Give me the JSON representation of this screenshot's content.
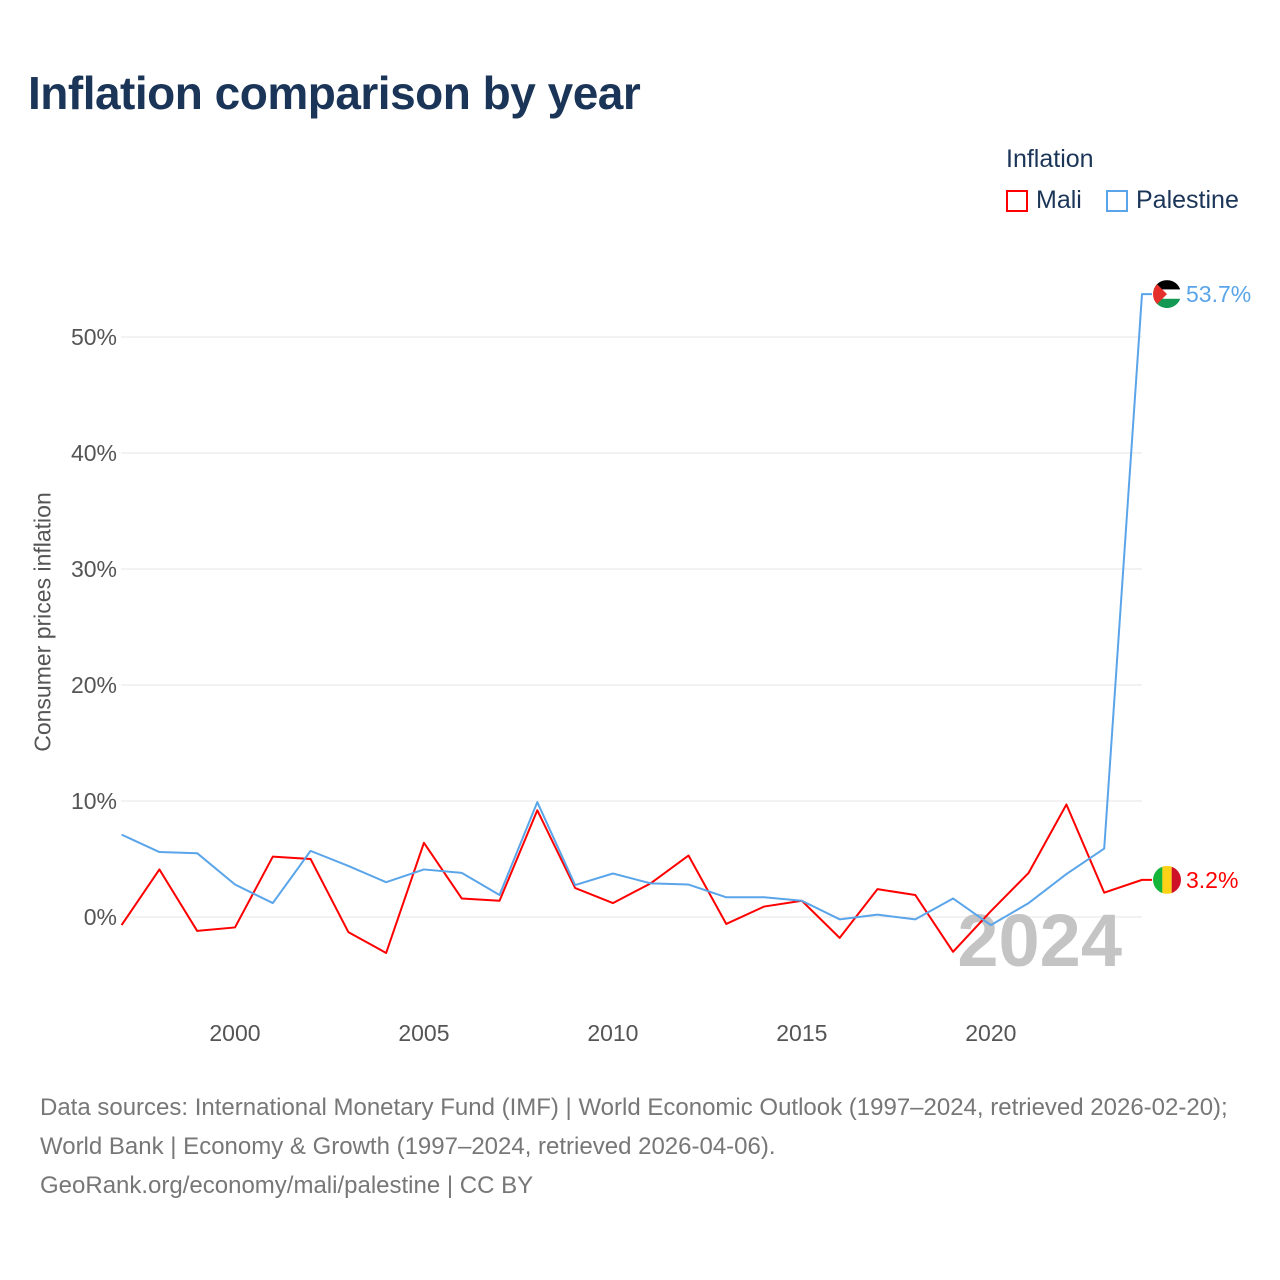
{
  "title": "Inflation comparison by year",
  "legend": {
    "title": "Inflation",
    "items": [
      {
        "name": "Mali",
        "color": "#ff0000"
      },
      {
        "name": "Palestine",
        "color": "#5aa5ea"
      }
    ]
  },
  "watermark_year": "2024",
  "source": {
    "line1": "Data sources: International Monetary Fund (IMF) | World Economic Outlook (1997–2024, retrieved 2026-02-20); World Bank | Economy & Growth (1997–2024, retrieved 2026-04-06).",
    "line2": "GeoRank.org/economy/mali/palestine | CC BY"
  },
  "chart_data": {
    "type": "line",
    "title": "Inflation comparison by year",
    "xlabel": "",
    "ylabel": "Consumer prices inflation",
    "xlim": [
      1997,
      2024
    ],
    "ylim": [
      -8,
      56
    ],
    "xticks": [
      2000,
      2005,
      2010,
      2015,
      2020
    ],
    "yticks": [
      0,
      10,
      20,
      30,
      40,
      50
    ],
    "ytick_labels": [
      "0%",
      "10%",
      "20%",
      "30%",
      "40%",
      "50%"
    ],
    "x": [
      1997,
      1998,
      1999,
      2000,
      2001,
      2002,
      2003,
      2004,
      2005,
      2006,
      2007,
      2008,
      2009,
      2010,
      2011,
      2012,
      2013,
      2014,
      2015,
      2016,
      2017,
      2018,
      2019,
      2020,
      2021,
      2022,
      2023,
      2024
    ],
    "series": [
      {
        "name": "Mali",
        "color": "#ff0000",
        "end_label": "3.2%",
        "values": [
          -0.7,
          4.1,
          -1.2,
          -0.9,
          5.2,
          5.0,
          -1.3,
          -3.1,
          6.4,
          1.6,
          1.4,
          9.2,
          2.5,
          1.2,
          2.9,
          5.3,
          -0.6,
          0.9,
          1.4,
          -1.8,
          2.4,
          1.9,
          -3.0,
          0.5,
          3.8,
          9.7,
          2.1,
          3.2
        ]
      },
      {
        "name": "Palestine",
        "color": "#5aa5ea",
        "end_label": "53.7%",
        "values": [
          7.1,
          5.6,
          5.5,
          2.8,
          1.2,
          5.7,
          4.4,
          3.0,
          4.1,
          3.8,
          1.9,
          9.9,
          2.75,
          3.75,
          2.9,
          2.8,
          1.7,
          1.7,
          1.4,
          -0.2,
          0.2,
          -0.2,
          1.6,
          -0.7,
          1.2,
          3.7,
          5.9,
          53.7
        ]
      }
    ],
    "grid": true,
    "legend_position": "top-right"
  }
}
